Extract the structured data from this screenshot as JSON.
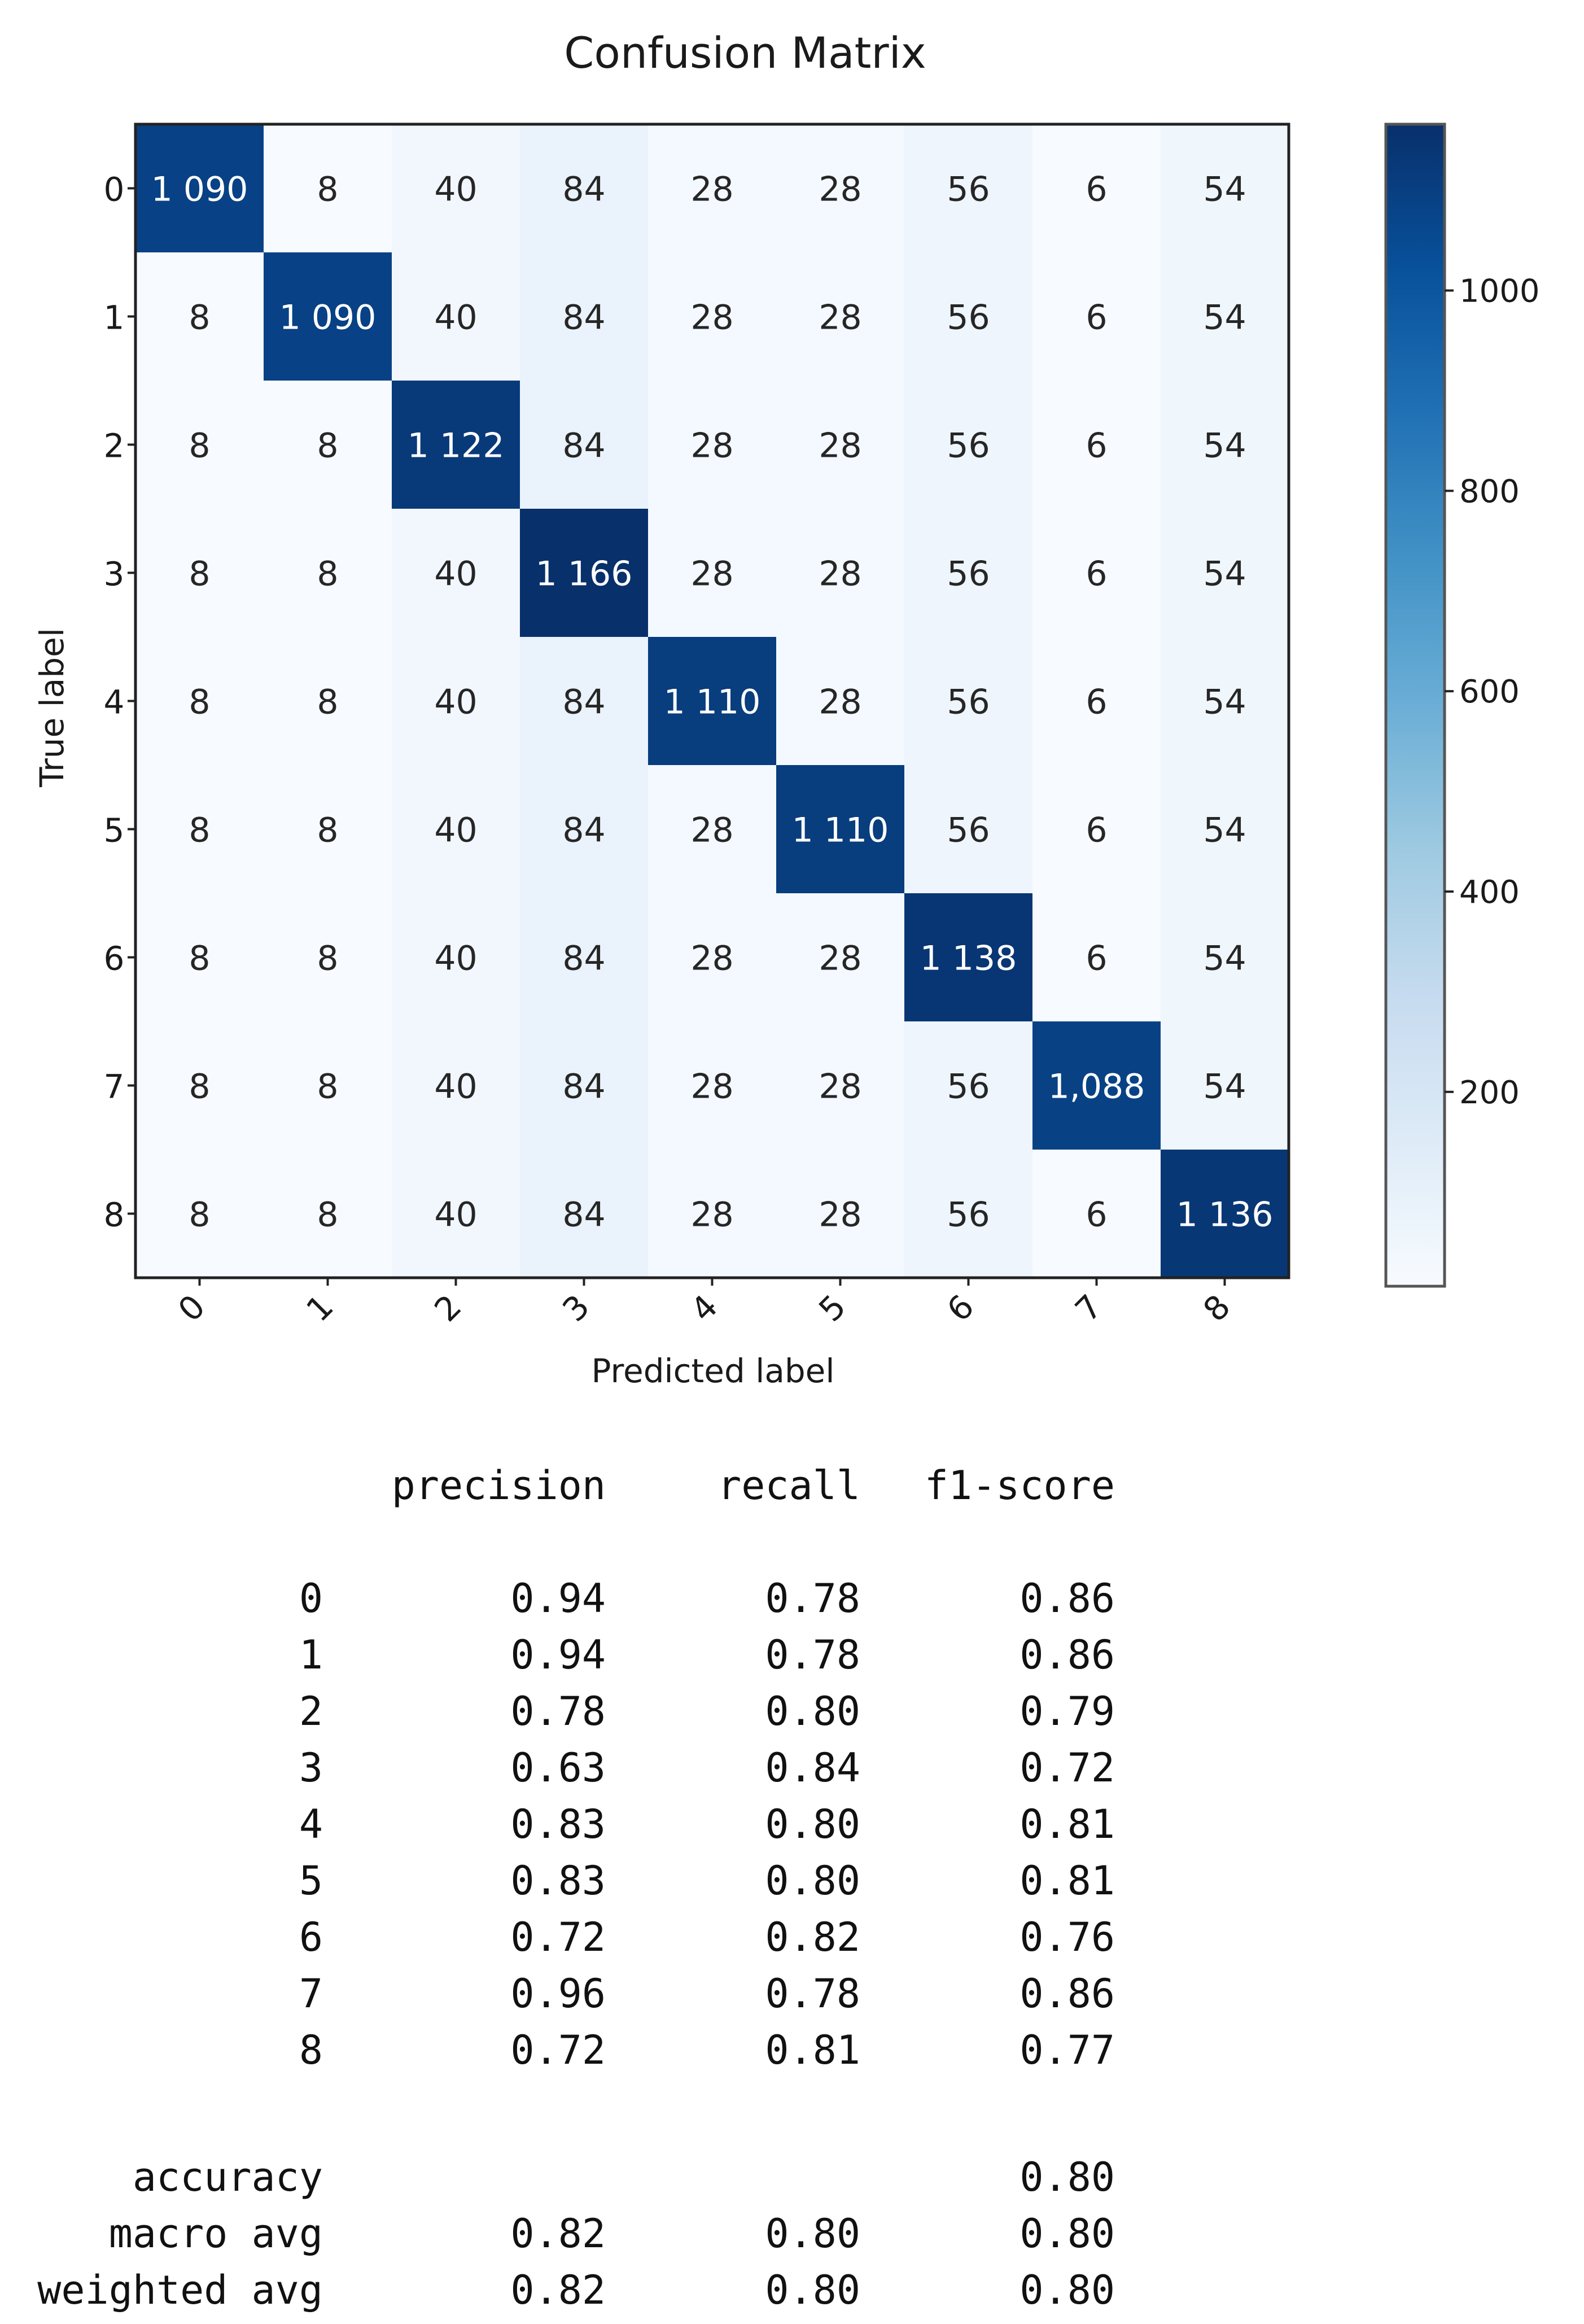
{
  "chart_data": {
    "type": "heatmap",
    "title": "Confusion Matrix",
    "xlabel": "Predicted label",
    "ylabel": "True label",
    "x_categories": [
      "0",
      "1",
      "2",
      "3",
      "4",
      "5",
      "6",
      "7",
      "8"
    ],
    "y_categories": [
      "0",
      "1",
      "2",
      "3",
      "4",
      "5",
      "6",
      "7",
      "8"
    ],
    "values": [
      [
        1090,
        8,
        40,
        84,
        28,
        28,
        56,
        6,
        54
      ],
      [
        8,
        1090,
        40,
        84,
        28,
        28,
        56,
        6,
        54
      ],
      [
        8,
        8,
        1122,
        84,
        28,
        28,
        56,
        6,
        54
      ],
      [
        8,
        8,
        40,
        1166,
        28,
        28,
        56,
        6,
        54
      ],
      [
        8,
        8,
        40,
        84,
        1110,
        28,
        56,
        6,
        54
      ],
      [
        8,
        8,
        40,
        84,
        28,
        1110,
        56,
        6,
        54
      ],
      [
        8,
        8,
        40,
        84,
        28,
        28,
        1138,
        6,
        54
      ],
      [
        8,
        8,
        40,
        84,
        28,
        28,
        56,
        1088,
        54
      ],
      [
        8,
        8,
        40,
        84,
        28,
        28,
        56,
        6,
        1136
      ]
    ],
    "cell_labels": [
      [
        "1 090",
        "8",
        "40",
        "84",
        "28",
        "28",
        "56",
        "6",
        "54"
      ],
      [
        "8",
        "1 090",
        "40",
        "84",
        "28",
        "28",
        "56",
        "6",
        "54"
      ],
      [
        "8",
        "8",
        "1 122",
        "84",
        "28",
        "28",
        "56",
        "6",
        "54"
      ],
      [
        "8",
        "8",
        "40",
        "1 166",
        "28",
        "28",
        "56",
        "6",
        "54"
      ],
      [
        "8",
        "8",
        "40",
        "84",
        "1 110",
        "28",
        "56",
        "6",
        "54"
      ],
      [
        "8",
        "8",
        "40",
        "84",
        "28",
        "1 110",
        "56",
        "6",
        "54"
      ],
      [
        "8",
        "8",
        "40",
        "84",
        "28",
        "28",
        "1 138",
        "6",
        "54"
      ],
      [
        "8",
        "8",
        "40",
        "84",
        "28",
        "28",
        "56",
        "1,088",
        "54"
      ],
      [
        "8",
        "8",
        "40",
        "84",
        "28",
        "28",
        "56",
        "6",
        "1 136"
      ]
    ],
    "colormap": "Blues",
    "color_min": "#f7fbff",
    "color_max": "#08306b",
    "colorbar": {
      "range": [
        6,
        1166
      ],
      "ticks": [
        200,
        400,
        600,
        800,
        1000
      ],
      "tick_labels": [
        "200",
        "400",
        "600",
        "800",
        "1000"
      ]
    }
  },
  "report": {
    "header": [
      "precision",
      "recall",
      "f1-score"
    ],
    "rows": [
      {
        "label": "0",
        "precision": "0.94",
        "recall": "0.78",
        "f1": "0.86"
      },
      {
        "label": "1",
        "precision": "0.94",
        "recall": "0.78",
        "f1": "0.86"
      },
      {
        "label": "2",
        "precision": "0.78",
        "recall": "0.80",
        "f1": "0.79"
      },
      {
        "label": "3",
        "precision": "0.63",
        "recall": "0.84",
        "f1": "0.72"
      },
      {
        "label": "4",
        "precision": "0.83",
        "recall": "0.80",
        "f1": "0.81"
      },
      {
        "label": "5",
        "precision": "0.83",
        "recall": "0.80",
        "f1": "0.81"
      },
      {
        "label": "6",
        "precision": "0.72",
        "recall": "0.82",
        "f1": "0.76"
      },
      {
        "label": "7",
        "precision": "0.96",
        "recall": "0.78",
        "f1": "0.86"
      },
      {
        "label": "8",
        "precision": "0.72",
        "recall": "0.81",
        "f1": "0.77"
      }
    ],
    "accuracy": {
      "label": "accuracy",
      "f1": "0.80"
    },
    "averages": [
      {
        "label": "macro avg",
        "precision": "0.82",
        "recall": "0.80",
        "f1": "0.80"
      },
      {
        "label": "weighted avg",
        "precision": "0.82",
        "recall": "0.80",
        "f1": "0.80"
      }
    ]
  }
}
